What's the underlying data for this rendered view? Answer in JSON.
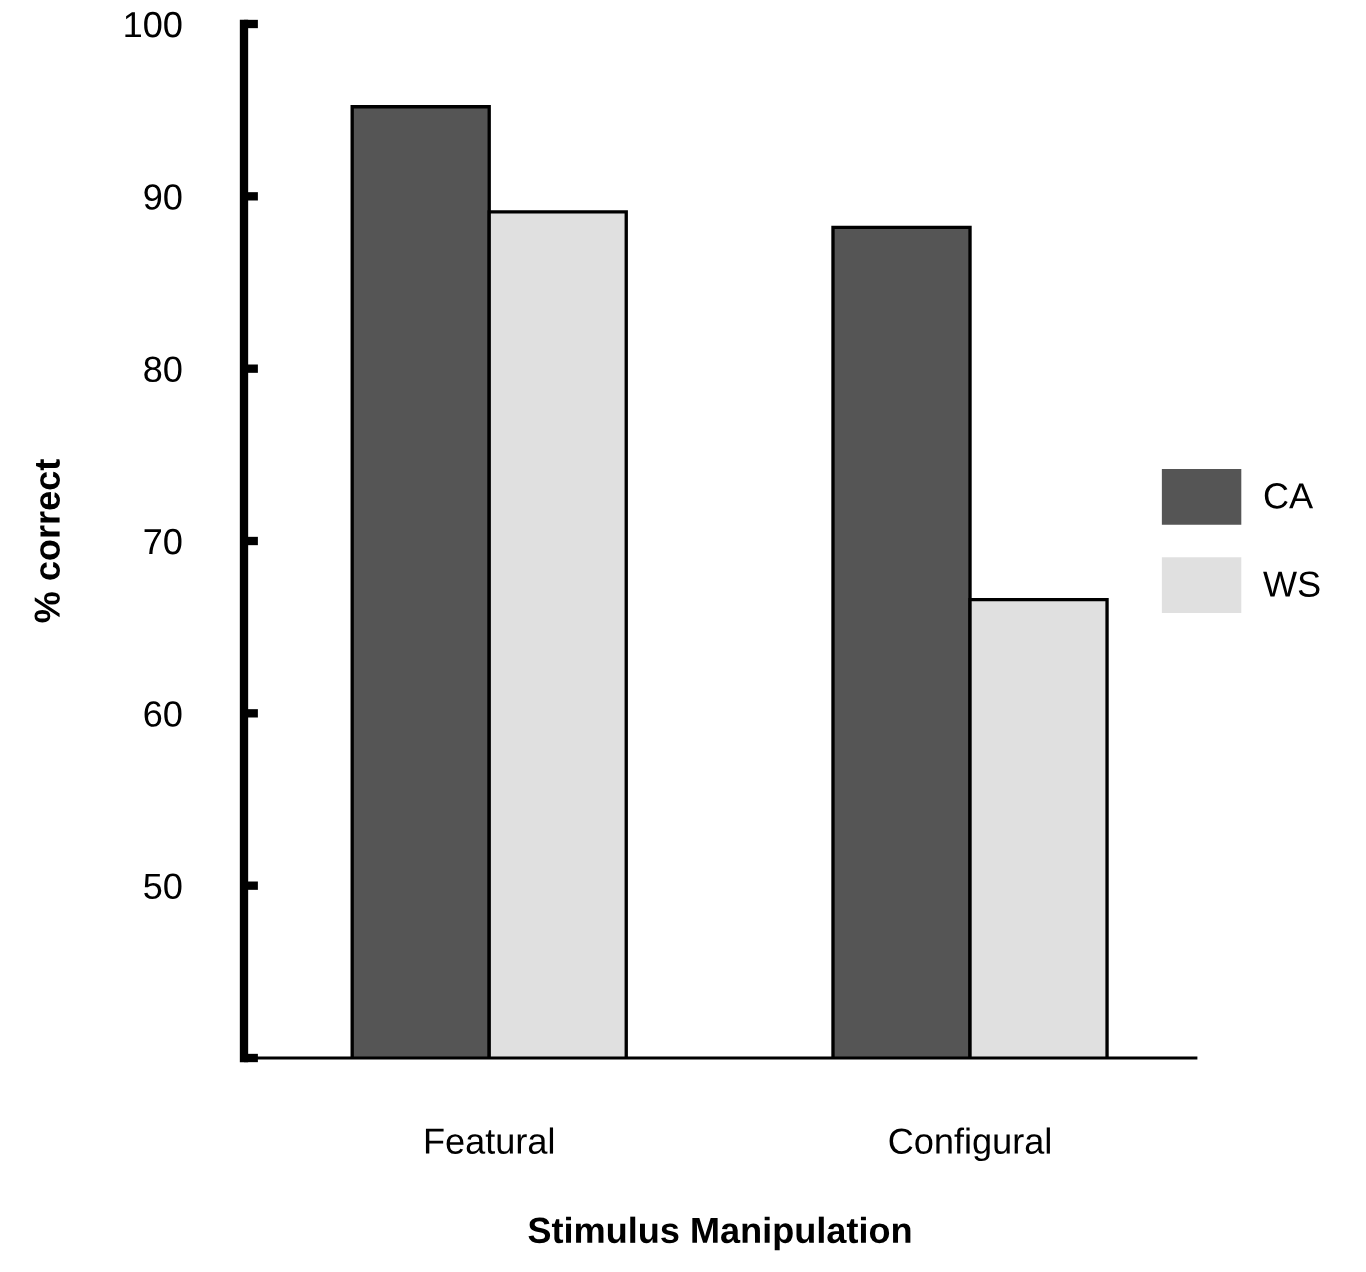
{
  "chart_data": {
    "type": "bar",
    "xlabel": "Stimulus Manipulation",
    "ylabel": "% correct",
    "categories": [
      "Featural",
      "Configural"
    ],
    "series": [
      {
        "name": "CA",
        "color": "#555555",
        "values": [
          95.2,
          88.2
        ]
      },
      {
        "name": "WS",
        "color": "#e0e0e0",
        "values": [
          89.1,
          66.6
        ]
      }
    ],
    "ylim": [
      40,
      100
    ],
    "yticks": [
      {
        "value": 40,
        "label": null
      },
      50,
      60,
      70,
      80,
      90,
      100
    ],
    "grid": false,
    "legend": "right"
  }
}
